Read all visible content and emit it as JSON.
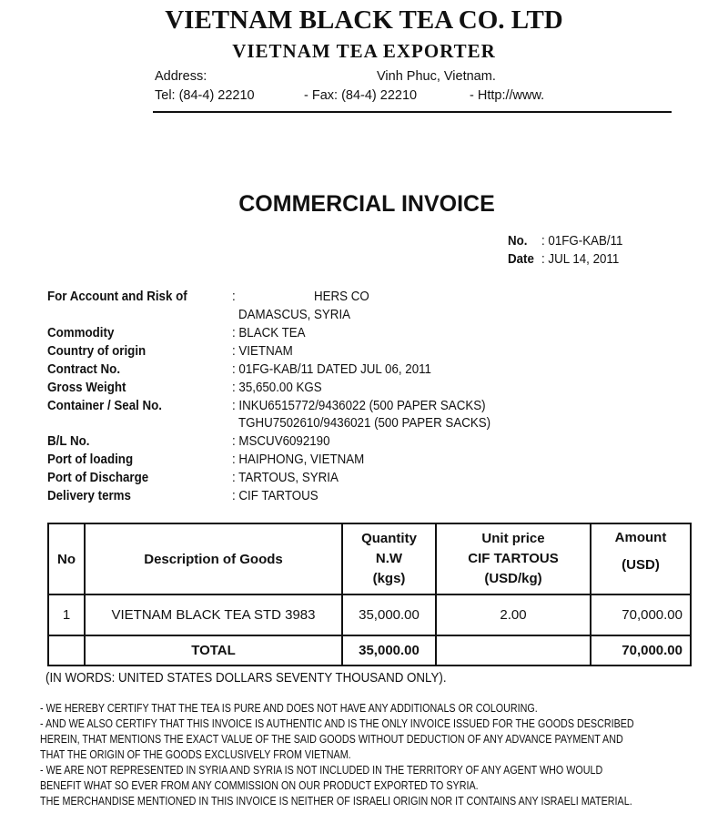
{
  "company": {
    "name": "VIETNAM BLACK TEA CO. LTD",
    "subtitle": "VIETNAM TEA EXPORTER",
    "address_label": "Address:",
    "address": "Vinh Phuc, Vietnam.",
    "tel": "Tel: (84-4) 22210",
    "fax": "- Fax: (84-4) 22210",
    "http": "- Http://www."
  },
  "title": "COMMERCIAL INVOICE",
  "meta": {
    "no_label": "No.",
    "no": ": 01FG-KAB/11",
    "date_label": "Date",
    "date": ": JUL 14, 2011"
  },
  "fields": [
    {
      "label": "For Account and Risk of",
      "value": ":",
      "extra": "HERS CO",
      "line2": "DAMASCUS, SYRIA"
    },
    {
      "label": "Commodity",
      "value": ": BLACK TEA"
    },
    {
      "label": "Country of origin",
      "value": ": VIETNAM"
    },
    {
      "label": "Contract No.",
      "value": ": 01FG-KAB/11  DATED JUL 06, 2011"
    },
    {
      "label": "Gross Weight",
      "value": ": 35,650.00 KGS"
    },
    {
      "label": "Container / Seal No.",
      "value": ": INKU6515772/9436022 (500 PAPER SACKS)",
      "line2": "TGHU7502610/9436021 (500 PAPER SACKS)"
    },
    {
      "label": "B/L No.",
      "value": ": MSCUV6092190"
    },
    {
      "label": "Port of loading",
      "value": ": HAIPHONG, VIETNAM"
    },
    {
      "label": "Port of Discharge",
      "value": ": TARTOUS, SYRIA"
    },
    {
      "label": "Delivery terms",
      "value": ": CIF TARTOUS"
    }
  ],
  "table": {
    "headers": {
      "no": "No",
      "desc": "Description of Goods",
      "qty": [
        "Quantity",
        "N.W",
        "(kgs)"
      ],
      "price": [
        "Unit price",
        "CIF TARTOUS",
        "(USD/kg)"
      ],
      "amount": [
        "Amount",
        "(USD)"
      ]
    },
    "rows": [
      {
        "no": "1",
        "desc": "VIETNAM BLACK TEA STD 3983",
        "qty": "35,000.00",
        "price": "2.00",
        "amount": "70,000.00"
      }
    ],
    "total": {
      "label": "TOTAL",
      "qty": "35,000.00",
      "amount": "70,000.00"
    }
  },
  "in_words": "(IN WORDS: UNITED STATES DOLLARS SEVENTY THOUSAND ONLY).",
  "certifications": [
    "- WE HEREBY CERTIFY THAT THE TEA IS PURE AND DOES NOT HAVE ANY ADDITIONALS OR COLOURING.",
    "- AND WE ALSO CERTIFY THAT THIS INVOICE IS AUTHENTIC AND IS THE ONLY INVOICE ISSUED FOR THE GOODS DESCRIBED",
    "HEREIN, THAT MENTIONS THE EXACT VALUE OF THE SAID GOODS WITHOUT DEDUCTION OF ANY ADVANCE PAYMENT AND",
    "THAT THE ORIGIN OF THE GOODS EXCLUSIVELY FROM VIETNAM.",
    "- WE ARE NOT REPRESENTED IN SYRIA AND SYRIA IS NOT INCLUDED IN THE TERRITORY OF ANY AGENT WHO WOULD",
    "BENEFIT WHAT SO EVER FROM ANY COMMISSION ON OUR PRODUCT EXPORTED TO SYRIA.",
    "THE MERCHANDISE MENTIONED IN THIS INVOICE IS NEITHER OF ISRAELI ORIGIN NOR IT CONTAINS ANY ISRAELI MATERIAL."
  ]
}
